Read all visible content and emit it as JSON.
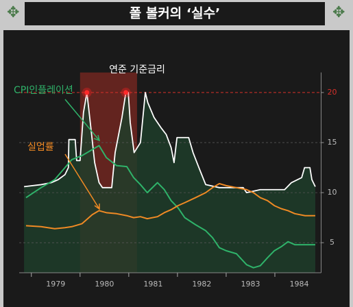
{
  "chart_data": {
    "type": "line",
    "title": "폴 볼커의 ‘실수’",
    "annotations": [
      "연준 기준금리",
      "CPI인플레이션",
      "실업률"
    ],
    "xlim": [
      1978.75,
      1984.95
    ],
    "xticks": [
      1979,
      1980,
      1981,
      1982,
      1983,
      1984
    ],
    "ylim": [
      2,
      22
    ],
    "yticks": [
      5,
      10,
      15,
      20
    ],
    "grid": true,
    "reference_line": 20,
    "reference_color": "#d9302a",
    "highlight": [
      1980.0,
      1981.17
    ],
    "highlight_color": "#8b2a22",
    "area_color": "#1f3d2a",
    "marker_points": [
      11,
      19
    ],
    "series": [
      {
        "name": "연준 기준금리",
        "color": "#ffffff",
        "x": [
          1978.85,
          1979.2,
          1979.41,
          1979.55,
          1979.69,
          1979.76,
          1979.77,
          1979.9,
          1979.93,
          1980.0,
          1980.07,
          1980.14,
          1980.21,
          1980.3,
          1980.39,
          1980.46,
          1980.65,
          1980.72,
          1980.86,
          1980.94,
          1980.99,
          1981.03,
          1981.11,
          1981.24,
          1981.34,
          1981.39,
          1981.52,
          1981.66,
          1981.77,
          1981.87,
          1981.93,
          1981.99,
          1982.23,
          1982.32,
          1982.44,
          1982.58,
          1982.86,
          1983.35,
          1983.42,
          1983.7,
          1984.2,
          1984.34,
          1984.55,
          1984.61,
          1984.72,
          1984.76,
          1984.83
        ],
        "values": [
          10.6,
          10.8,
          11,
          11.3,
          11.8,
          12.5,
          15.3,
          15.3,
          13.2,
          13.2,
          18,
          20,
          17,
          13,
          11,
          10.5,
          10.5,
          14,
          17.5,
          20,
          20,
          17,
          14,
          15,
          20,
          19,
          17.5,
          16.5,
          15.8,
          14.5,
          13,
          15.5,
          15.5,
          14,
          12.5,
          10.8,
          10.5,
          10.5,
          10,
          10.3,
          10.3,
          11,
          11.5,
          12.5,
          12.5,
          11.3,
          10.6
        ]
      },
      {
        "name": "CPI인플레이션",
        "color": "#2fb36a",
        "x": [
          1978.89,
          1979.2,
          1979.48,
          1979.69,
          1979.83,
          1980.04,
          1980.25,
          1980.39,
          1980.54,
          1980.75,
          1980.96,
          1981.1,
          1981.24,
          1981.38,
          1981.59,
          1981.73,
          1981.87,
          1982.01,
          1982.15,
          1982.37,
          1982.58,
          1982.72,
          1982.86,
          1983.0,
          1983.21,
          1983.42,
          1983.56,
          1983.7,
          1983.85,
          1983.99,
          1984.13,
          1984.27,
          1984.41,
          1984.62,
          1984.83
        ],
        "values": [
          9.5,
          10.5,
          11.3,
          12.5,
          13.3,
          13.7,
          14.3,
          14.7,
          13.5,
          12.7,
          12.6,
          11.5,
          10.8,
          10,
          11,
          10.3,
          9.2,
          8.5,
          7.5,
          6.8,
          6.2,
          5.5,
          4.5,
          4.2,
          3.9,
          2.8,
          2.5,
          2.7,
          3.5,
          4.2,
          4.6,
          5.1,
          4.8,
          4.8,
          4.8
        ]
      },
      {
        "name": "실업률",
        "color": "#f08a24",
        "x": [
          1978.89,
          1979.2,
          1979.48,
          1979.69,
          1979.83,
          1980.04,
          1980.25,
          1980.39,
          1980.54,
          1980.75,
          1980.96,
          1981.1,
          1981.24,
          1981.38,
          1981.59,
          1981.73,
          1981.87,
          1982.01,
          1982.15,
          1982.37,
          1982.58,
          1982.72,
          1982.86,
          1983.0,
          1983.21,
          1983.42,
          1983.56,
          1983.7,
          1983.85,
          1983.99,
          1984.13,
          1984.27,
          1984.41,
          1984.62,
          1984.83
        ],
        "values": [
          6.7,
          6.6,
          6.4,
          6.5,
          6.6,
          6.9,
          7.8,
          8.2,
          8.0,
          7.9,
          7.7,
          7.5,
          7.6,
          7.4,
          7.6,
          8.0,
          8.3,
          8.7,
          9.0,
          9.5,
          10.0,
          10.5,
          10.9,
          10.7,
          10.5,
          10.3,
          10.0,
          9.5,
          9.2,
          8.7,
          8.4,
          8.2,
          7.9,
          7.7,
          7.7
        ]
      }
    ]
  }
}
